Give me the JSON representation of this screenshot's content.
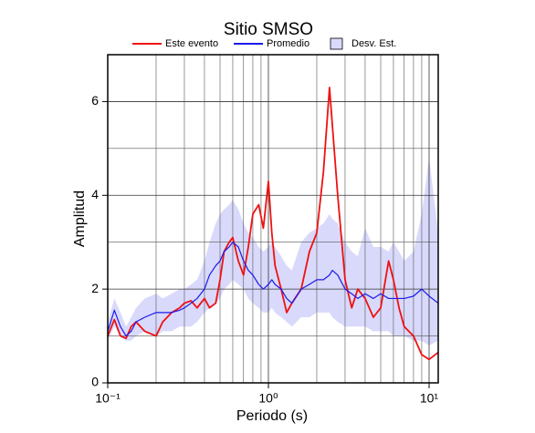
{
  "chart_data": {
    "type": "line",
    "title": "Sitio SMSO",
    "xlabel": "Periodo (s)",
    "ylabel": "Amplitud",
    "xscale": "log",
    "xlim": [
      0.1,
      11.4
    ],
    "ylim": [
      0,
      7
    ],
    "xticks": [
      {
        "value": 0.1,
        "label": "10⁻¹"
      },
      {
        "value": 1,
        "label": "10⁰"
      },
      {
        "value": 10,
        "label": "10¹"
      }
    ],
    "yticks": [
      0,
      2,
      4,
      6
    ],
    "grid": true,
    "x": [
      0.1,
      0.11,
      0.12,
      0.13,
      0.14,
      0.15,
      0.17,
      0.2,
      0.22,
      0.25,
      0.28,
      0.3,
      0.33,
      0.36,
      0.4,
      0.43,
      0.47,
      0.5,
      0.53,
      0.57,
      0.6,
      0.65,
      0.7,
      0.75,
      0.8,
      0.87,
      0.93,
      1.0,
      1.05,
      1.1,
      1.2,
      1.3,
      1.4,
      1.6,
      1.8,
      2.0,
      2.2,
      2.4,
      2.5,
      2.7,
      3.0,
      3.3,
      3.6,
      4.0,
      4.5,
      5.0,
      5.6,
      6.0,
      6.5,
      7.0,
      8.0,
      9.0,
      10.0,
      11.4
    ],
    "band": {
      "name": "Desv. Est.",
      "color": "#d9d9fb",
      "lower": [
        0.9,
        1.2,
        1.0,
        0.9,
        0.9,
        1.0,
        1.1,
        1.0,
        1.1,
        1.1,
        1.2,
        1.2,
        1.2,
        1.3,
        1.5,
        1.6,
        1.7,
        1.8,
        2.0,
        2.1,
        2.2,
        2.1,
        2.0,
        1.8,
        1.7,
        1.6,
        1.5,
        1.5,
        1.6,
        1.5,
        1.4,
        1.3,
        1.2,
        1.4,
        1.4,
        1.5,
        1.5,
        1.5,
        1.4,
        1.3,
        1.2,
        1.2,
        1.2,
        1.2,
        1.1,
        1.1,
        1.1,
        1.0,
        1.0,
        1.0,
        0.9,
        0.9,
        0.8,
        0.9
      ],
      "upper": [
        1.3,
        1.8,
        1.5,
        1.2,
        1.4,
        1.6,
        1.8,
        1.9,
        1.8,
        1.9,
        2.0,
        2.0,
        2.1,
        2.2,
        2.6,
        3.0,
        3.4,
        3.6,
        3.7,
        3.8,
        3.9,
        3.7,
        3.4,
        3.2,
        3.1,
        2.9,
        2.8,
        2.9,
        3.0,
        2.9,
        2.7,
        2.5,
        2.4,
        3.0,
        3.2,
        3.3,
        3.4,
        3.6,
        3.5,
        3.4,
        3.0,
        2.8,
        2.7,
        3.3,
        2.9,
        2.9,
        2.8,
        3.0,
        2.8,
        2.6,
        2.8,
        3.6,
        4.8,
        3.2
      ]
    },
    "series": [
      {
        "name": "Este evento",
        "color": "#ee1111",
        "values": [
          1.0,
          1.35,
          1.0,
          0.95,
          1.2,
          1.3,
          1.1,
          1.0,
          1.3,
          1.5,
          1.6,
          1.7,
          1.75,
          1.6,
          1.8,
          1.6,
          1.7,
          2.2,
          2.8,
          3.0,
          3.1,
          2.6,
          2.3,
          2.9,
          3.6,
          3.8,
          3.3,
          4.3,
          3.2,
          2.5,
          2.0,
          1.5,
          1.7,
          2.0,
          2.8,
          3.2,
          4.5,
          6.3,
          5.5,
          4.0,
          2.2,
          1.6,
          2.0,
          1.8,
          1.4,
          1.6,
          2.6,
          2.2,
          1.6,
          1.2,
          1.0,
          0.6,
          0.5,
          0.65
        ]
      },
      {
        "name": "Promedio",
        "color": "#1a1aee",
        "values": [
          1.1,
          1.55,
          1.2,
          1.0,
          1.1,
          1.3,
          1.4,
          1.5,
          1.5,
          1.5,
          1.55,
          1.6,
          1.7,
          1.8,
          2.0,
          2.3,
          2.5,
          2.6,
          2.8,
          2.9,
          3.0,
          2.9,
          2.6,
          2.4,
          2.3,
          2.1,
          2.0,
          2.1,
          2.2,
          2.1,
          2.0,
          1.8,
          1.7,
          2.0,
          2.1,
          2.2,
          2.2,
          2.3,
          2.4,
          2.3,
          2.0,
          1.9,
          1.8,
          1.9,
          1.8,
          1.9,
          1.8,
          1.8,
          1.8,
          1.8,
          1.85,
          2.0,
          1.85,
          1.7
        ]
      }
    ]
  }
}
